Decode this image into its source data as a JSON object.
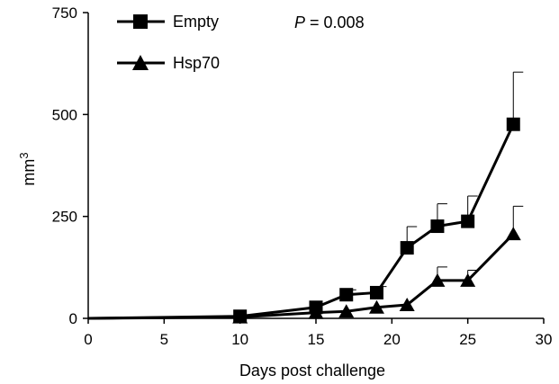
{
  "chart_data": {
    "type": "line",
    "xlabel": "Days post challenge",
    "ylabel_base": "mm",
    "ylabel_sup": "3",
    "xlim": [
      0,
      30
    ],
    "ylim": [
      0,
      750
    ],
    "xticks": [
      0,
      5,
      10,
      15,
      20,
      25,
      30
    ],
    "yticks": [
      0,
      250,
      500,
      750
    ],
    "grid": false,
    "legend_position": "top-left",
    "annotation": {
      "italic": "P",
      "text": " = 0.008"
    },
    "series": [
      {
        "name": "Empty",
        "marker": "square",
        "x": [
          0,
          10,
          15,
          17,
          19,
          21,
          23,
          25,
          28
        ],
        "y": [
          0,
          5,
          27,
          58,
          63,
          173,
          226,
          238,
          476
        ],
        "error": [
          0,
          0,
          0,
          12,
          15,
          52,
          55,
          62,
          128
        ]
      },
      {
        "name": "Hsp70",
        "marker": "triangle",
        "x": [
          0,
          10,
          15,
          17,
          19,
          21,
          23,
          25,
          28
        ],
        "y": [
          0,
          3,
          14,
          17,
          27,
          33,
          93,
          93,
          207
        ],
        "error": [
          0,
          0,
          0,
          0,
          0,
          0,
          33,
          25,
          68
        ]
      }
    ]
  }
}
